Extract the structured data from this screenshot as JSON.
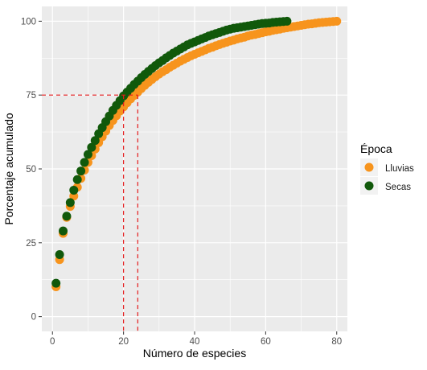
{
  "chart_data": {
    "type": "scatter",
    "xlabel": "Número de especies",
    "ylabel": "Porcentaje acumulado",
    "xlim": [
      -3,
      83
    ],
    "ylim": [
      -5,
      105
    ],
    "x_ticks": [
      0,
      20,
      40,
      60,
      80
    ],
    "y_ticks": [
      0,
      25,
      50,
      75,
      100
    ],
    "grid": true,
    "legend": {
      "title": "Época",
      "placement": "right",
      "entries": [
        "Lluvias",
        "Secas"
      ]
    },
    "colors": {
      "panel": "#ebebeb",
      "grid": "#ffffff",
      "lluvias": "#f7941d",
      "secas": "#11590b",
      "reference": "#e41a1c"
    },
    "series": [
      {
        "name": "Lluvias",
        "color": "#f7941d",
        "points": [
          [
            1,
            10.1
          ],
          [
            2,
            19.3
          ],
          [
            3,
            28.2
          ],
          [
            4,
            33.6
          ],
          [
            5,
            37.3
          ],
          [
            6,
            40.8
          ],
          [
            7,
            43.8
          ],
          [
            8,
            46.8
          ],
          [
            9,
            49.6
          ],
          [
            10,
            52.2
          ],
          [
            11,
            54.5
          ],
          [
            12,
            56.7
          ],
          [
            13,
            58.9
          ],
          [
            14,
            60.9
          ],
          [
            15,
            62.8
          ],
          [
            16,
            64.7
          ],
          [
            17,
            66.4
          ],
          [
            18,
            68.0
          ],
          [
            19,
            69.6
          ],
          [
            20,
            71.0
          ],
          [
            21,
            72.4
          ],
          [
            22,
            73.7
          ],
          [
            23,
            74.9
          ],
          [
            24,
            76.0
          ],
          [
            25,
            77.2
          ],
          [
            26,
            78.3
          ],
          [
            27,
            79.3
          ],
          [
            28,
            80.3
          ],
          [
            29,
            81.2
          ],
          [
            30,
            82.1
          ],
          [
            31,
            82.9
          ],
          [
            32,
            83.6
          ],
          [
            33,
            84.4
          ],
          [
            34,
            85.1
          ],
          [
            35,
            85.8
          ],
          [
            36,
            86.5
          ],
          [
            37,
            87.1
          ],
          [
            38,
            87.7
          ],
          [
            39,
            88.3
          ],
          [
            40,
            88.8
          ],
          [
            41,
            89.3
          ],
          [
            42,
            89.8
          ],
          [
            43,
            90.3
          ],
          [
            44,
            90.8
          ],
          [
            45,
            91.2
          ],
          [
            46,
            91.7
          ],
          [
            47,
            92.1
          ],
          [
            48,
            92.5
          ],
          [
            49,
            92.9
          ],
          [
            50,
            93.3
          ],
          [
            51,
            93.6
          ],
          [
            52,
            94.0
          ],
          [
            53,
            94.3
          ],
          [
            54,
            94.6
          ],
          [
            55,
            95.0
          ],
          [
            56,
            95.3
          ],
          [
            57,
            95.5
          ],
          [
            58,
            95.8
          ],
          [
            59,
            96.1
          ],
          [
            60,
            96.4
          ],
          [
            61,
            96.6
          ],
          [
            62,
            96.9
          ],
          [
            63,
            97.1
          ],
          [
            64,
            97.3
          ],
          [
            65,
            97.6
          ],
          [
            66,
            97.8
          ],
          [
            67,
            98.0
          ],
          [
            68,
            98.2
          ],
          [
            69,
            98.4
          ],
          [
            70,
            98.6
          ],
          [
            71,
            98.8
          ],
          [
            72,
            99.0
          ],
          [
            73,
            99.1
          ],
          [
            74,
            99.3
          ],
          [
            75,
            99.5
          ],
          [
            76,
            99.6
          ],
          [
            77,
            99.7
          ],
          [
            78,
            99.8
          ],
          [
            79,
            99.9
          ],
          [
            80,
            100
          ]
        ]
      },
      {
        "name": "Secas",
        "color": "#11590b",
        "points": [
          [
            1,
            11.3
          ],
          [
            2,
            21.0
          ],
          [
            3,
            29.0
          ],
          [
            4,
            34.0
          ],
          [
            5,
            38.6
          ],
          [
            6,
            42.8
          ],
          [
            7,
            46.4
          ],
          [
            8,
            49.3
          ],
          [
            9,
            52.2
          ],
          [
            10,
            54.9
          ],
          [
            11,
            57.3
          ],
          [
            12,
            59.6
          ],
          [
            13,
            61.9
          ],
          [
            14,
            64.0
          ],
          [
            15,
            66.0
          ],
          [
            16,
            67.9
          ],
          [
            17,
            69.8
          ],
          [
            18,
            71.5
          ],
          [
            19,
            73.1
          ],
          [
            20,
            74.7
          ],
          [
            21,
            76.0
          ],
          [
            22,
            77.3
          ],
          [
            23,
            78.6
          ],
          [
            24,
            79.7
          ],
          [
            25,
            80.9
          ],
          [
            26,
            82.0
          ],
          [
            27,
            83.0
          ],
          [
            28,
            84.0
          ],
          [
            29,
            85.0
          ],
          [
            30,
            85.9
          ],
          [
            31,
            86.7
          ],
          [
            32,
            87.6
          ],
          [
            33,
            88.4
          ],
          [
            34,
            89.2
          ],
          [
            35,
            89.9
          ],
          [
            36,
            90.6
          ],
          [
            37,
            91.3
          ],
          [
            38,
            92.0
          ],
          [
            39,
            92.5
          ],
          [
            40,
            93.0
          ],
          [
            41,
            93.5
          ],
          [
            42,
            94.0
          ],
          [
            43,
            94.5
          ],
          [
            44,
            95.0
          ],
          [
            45,
            95.4
          ],
          [
            46,
            95.8
          ],
          [
            47,
            96.2
          ],
          [
            48,
            96.6
          ],
          [
            49,
            97.0
          ],
          [
            50,
            97.3
          ],
          [
            51,
            97.6
          ],
          [
            52,
            97.8
          ],
          [
            53,
            98.0
          ],
          [
            54,
            98.2
          ],
          [
            55,
            98.4
          ],
          [
            56,
            98.6
          ],
          [
            57,
            98.8
          ],
          [
            58,
            99.0
          ],
          [
            59,
            99.2
          ],
          [
            60,
            99.3
          ],
          [
            61,
            99.4
          ],
          [
            62,
            99.6
          ],
          [
            63,
            99.7
          ],
          [
            64,
            99.8
          ],
          [
            65,
            99.9
          ],
          [
            66,
            100
          ]
        ]
      }
    ],
    "reference_lines": {
      "y": 75,
      "x": [
        20,
        24
      ]
    }
  }
}
